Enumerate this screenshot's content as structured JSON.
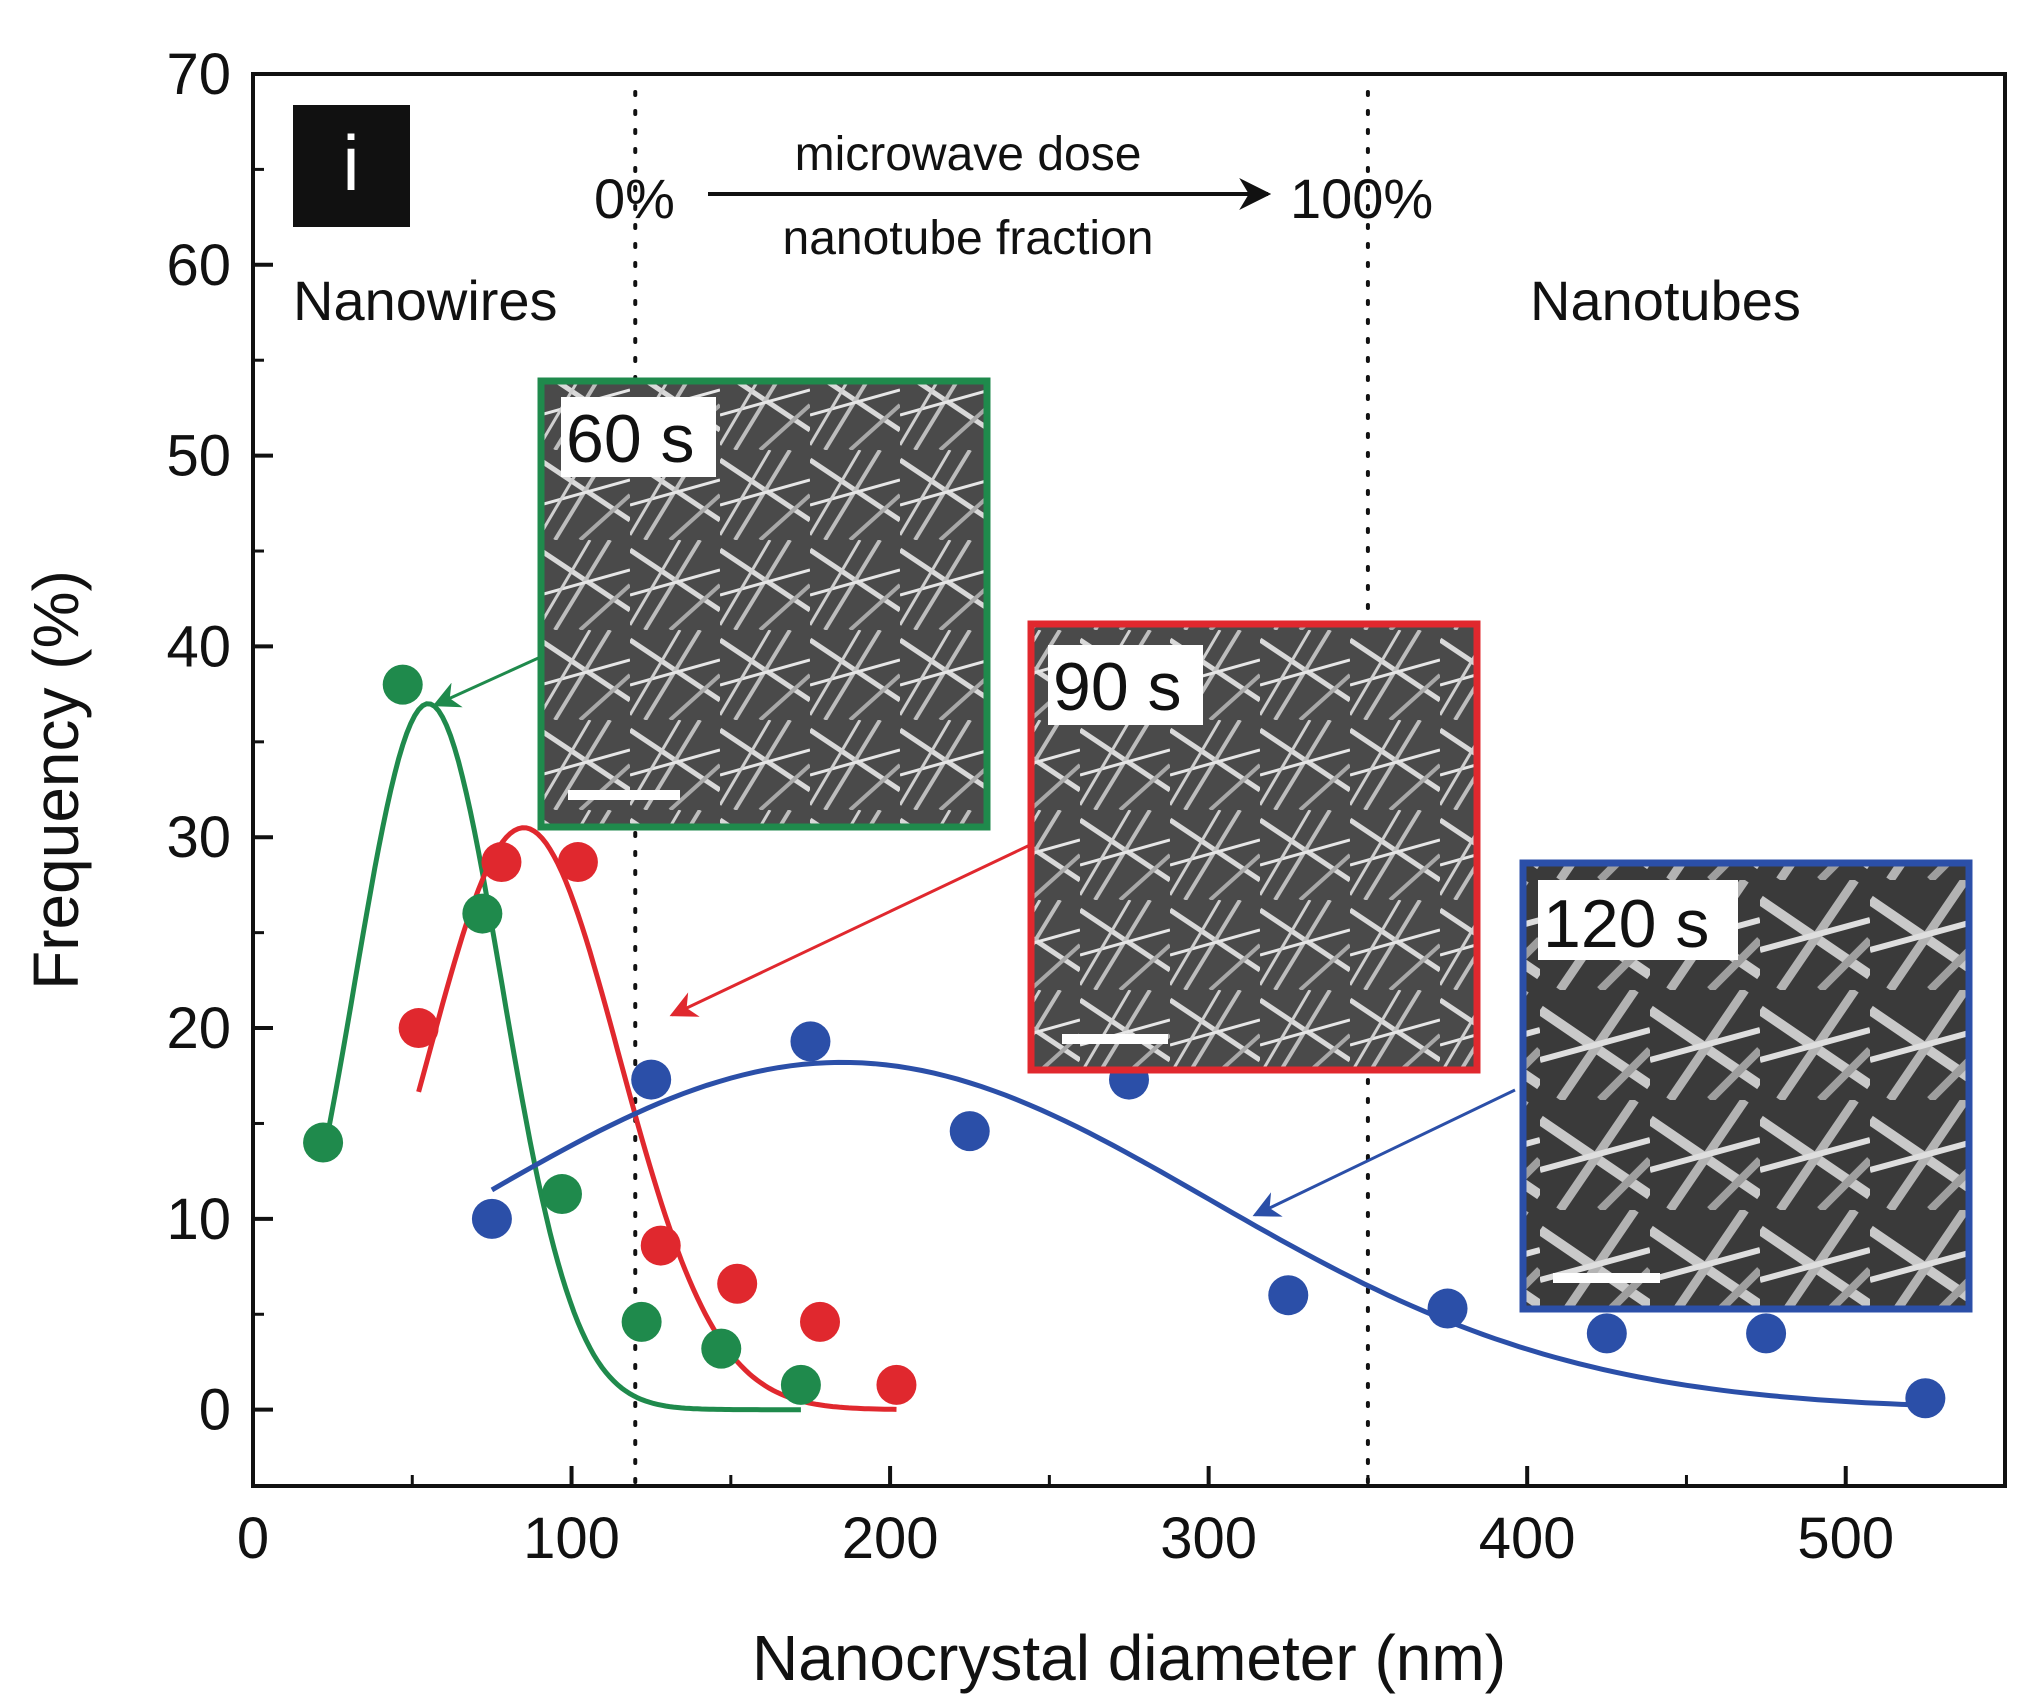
{
  "chart_data": {
    "type": "scatter",
    "panel_label": "i",
    "xlabel": "Nanocrystal diameter (nm)",
    "ylabel": "Frequency (%)",
    "xlim": [
      0,
      550
    ],
    "ylim": [
      -4,
      70
    ],
    "x_ticks": [
      0,
      100,
      200,
      300,
      400,
      500
    ],
    "y_ticks": [
      0,
      10,
      20,
      30,
      40,
      50,
      60,
      70
    ],
    "grid": false,
    "series": [
      {
        "color": "#1f8a4c",
        "x": [
          22,
          47,
          72,
          97,
          122,
          147,
          172
        ],
        "y": [
          14,
          38,
          26,
          11.3,
          4.6,
          3.2,
          1.3
        ],
        "fit": {
          "type": "gaussian",
          "amplitude": 37,
          "center": 55,
          "sigma": 23,
          "x_range": [
            22,
            172
          ]
        }
      },
      {
        "color": "#e0282e",
        "x": [
          52,
          78,
          102,
          128,
          152,
          178,
          202
        ],
        "y": [
          20,
          28.7,
          28.7,
          8.6,
          6.6,
          4.6,
          1.3
        ],
        "fit": {
          "type": "gaussian",
          "amplitude": 30.5,
          "center": 85,
          "sigma": 30,
          "x_range": [
            52,
            202
          ]
        }
      },
      {
        "color": "#2b4fa8",
        "x": [
          75,
          125,
          175,
          225,
          275,
          325,
          375,
          425,
          475,
          525
        ],
        "y": [
          10,
          17.3,
          19.3,
          14.6,
          17.3,
          6,
          5.3,
          4,
          4,
          0.6
        ],
        "fit": {
          "type": "gaussian",
          "amplitude": 18.2,
          "center": 185,
          "sigma": 115,
          "x_range": [
            75,
            525
          ]
        }
      }
    ],
    "vertical_lines": [
      120,
      350
    ],
    "annotations": {
      "left_region": "Nanowires",
      "right_region": "Nanotubes",
      "start_pct": "0%",
      "end_pct": "100%",
      "arrow_top": "microwave dose",
      "arrow_bottom": "nanotube fraction"
    },
    "insets": [
      {
        "label": "60 s",
        "color": "#1f8a4c"
      },
      {
        "label": "90 s",
        "color": "#e0282e"
      },
      {
        "label": "120 s",
        "color": "#2b4fa8"
      }
    ]
  }
}
